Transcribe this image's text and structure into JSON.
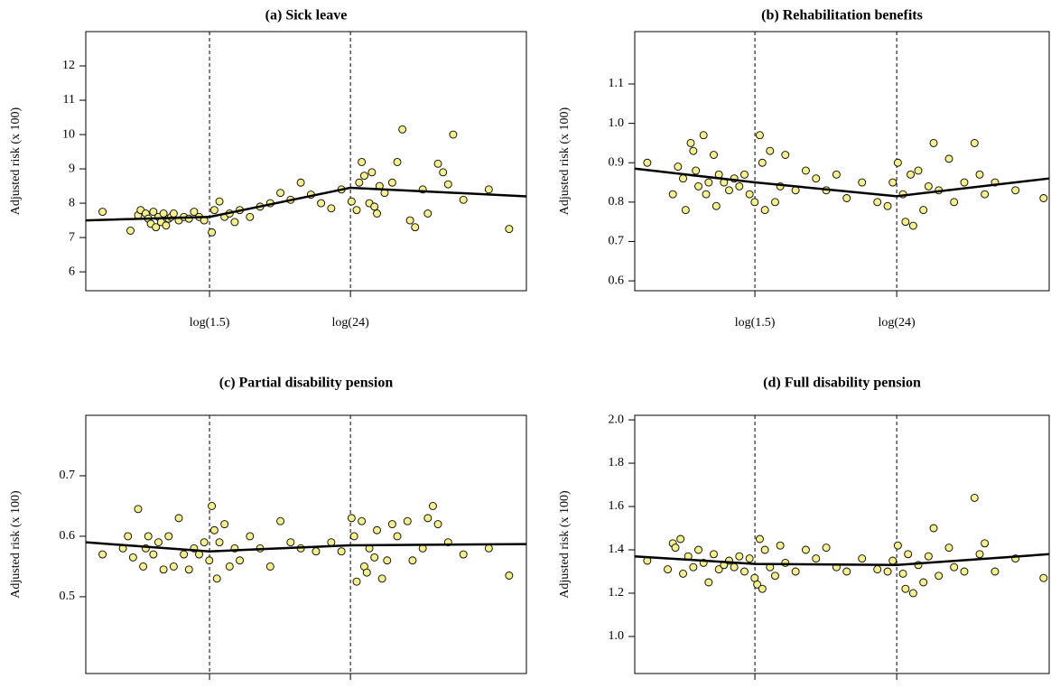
{
  "chart_data": [
    {
      "type": "scatter",
      "title": "(a) Sick leave",
      "ylabel": "Adjusted risk (x 100)",
      "xlim": [
        -2.03,
        6.64
      ],
      "ylim": [
        5.45,
        13
      ],
      "xticks": [
        {
          "value": 0.405,
          "label": "log(1.5)"
        },
        {
          "value": 3.178,
          "label": "log(24)"
        }
      ],
      "yticks": [
        6,
        7,
        8,
        9,
        10,
        11,
        12
      ],
      "dashed_at_xticks": true,
      "point_color": "#f5f08a",
      "line_color": "#000000",
      "x": [
        -1.7,
        -1.15,
        -1.0,
        -0.95,
        -0.85,
        -0.8,
        -0.75,
        -0.7,
        -0.65,
        -0.6,
        -0.55,
        -0.5,
        -0.45,
        -0.4,
        -0.35,
        -0.3,
        -0.2,
        -0.1,
        0,
        0.1,
        0.2,
        0.3,
        0.45,
        0.5,
        0.6,
        0.7,
        0.8,
        0.9,
        1.0,
        1.2,
        1.4,
        1.6,
        1.8,
        2.0,
        2.2,
        2.4,
        2.6,
        2.8,
        3.0,
        3.2,
        3.3,
        3.35,
        3.4,
        3.45,
        3.55,
        3.6,
        3.65,
        3.7,
        3.75,
        3.85,
        4.0,
        4.1,
        4.2,
        4.35,
        4.45,
        4.6,
        4.7,
        4.9,
        5.0,
        5.1,
        5.2,
        5.4,
        5.9,
        6.3
      ],
      "values": [
        7.75,
        7.2,
        7.65,
        7.8,
        7.7,
        7.55,
        7.4,
        7.75,
        7.3,
        7.6,
        7.45,
        7.7,
        7.35,
        7.55,
        7.6,
        7.7,
        7.5,
        7.6,
        7.55,
        7.75,
        7.6,
        7.5,
        7.15,
        7.8,
        8.05,
        7.6,
        7.7,
        7.45,
        7.8,
        7.6,
        7.9,
        8.0,
        8.3,
        8.1,
        8.6,
        8.25,
        8.0,
        7.85,
        8.4,
        8.05,
        7.8,
        8.6,
        9.2,
        8.8,
        8.0,
        8.9,
        7.9,
        7.7,
        8.5,
        8.3,
        8.6,
        9.2,
        10.15,
        7.5,
        7.3,
        8.4,
        7.7,
        9.15,
        8.9,
        8.55,
        10.0,
        8.1,
        8.4,
        7.25
      ],
      "fit": {
        "x": [
          -2.03,
          0.405,
          3.178,
          6.64
        ],
        "values": [
          7.5,
          7.6,
          8.45,
          8.2
        ]
      }
    },
    {
      "type": "scatter",
      "title": "(b) Rehabilitation benefits",
      "ylabel": "Adjusted risk (x 100)",
      "xlim": [
        -1.945,
        6.16
      ],
      "ylim": [
        0.575,
        1.233
      ],
      "xticks": [
        {
          "value": 0.405,
          "label": "log(1.5)"
        },
        {
          "value": 3.178,
          "label": "log(24)"
        }
      ],
      "yticks": [
        {
          "value": 0.6,
          "label": "0.6"
        },
        {
          "value": 0.7,
          "label": "0.7"
        },
        {
          "value": 0.8,
          "label": "0.8"
        },
        {
          "value": 0.9,
          "label": "0.9"
        },
        {
          "value": 1.0,
          "label": "1.0"
        },
        {
          "value": 1.1,
          "label": "1.1"
        }
      ],
      "dashed_at_xticks": true,
      "point_color": "#f5f08a",
      "line_color": "#000000",
      "x": [
        -1.7,
        -1.2,
        -1.1,
        -1.0,
        -0.95,
        -0.85,
        -0.8,
        -0.75,
        -0.7,
        -0.6,
        -0.55,
        -0.5,
        -0.4,
        -0.35,
        -0.3,
        -0.2,
        -0.1,
        0,
        0.1,
        0.2,
        0.3,
        0.4,
        0.5,
        0.55,
        0.6,
        0.7,
        0.8,
        0.9,
        1.0,
        1.2,
        1.4,
        1.6,
        1.8,
        2.0,
        2.2,
        2.5,
        2.8,
        3.0,
        3.1,
        3.2,
        3.3,
        3.35,
        3.45,
        3.5,
        3.6,
        3.7,
        3.8,
        3.9,
        4.0,
        4.2,
        4.3,
        4.5,
        4.7,
        4.8,
        4.9,
        5.1,
        5.5,
        6.05
      ],
      "values": [
        0.9,
        0.82,
        0.89,
        0.86,
        0.78,
        0.95,
        0.93,
        0.88,
        0.84,
        0.97,
        0.82,
        0.85,
        0.92,
        0.79,
        0.87,
        0.85,
        0.83,
        0.86,
        0.84,
        0.87,
        0.82,
        0.8,
        0.97,
        0.9,
        0.78,
        0.93,
        0.8,
        0.84,
        0.92,
        0.83,
        0.88,
        0.86,
        0.83,
        0.87,
        0.81,
        0.85,
        0.8,
        0.79,
        0.85,
        0.9,
        0.82,
        0.75,
        0.87,
        0.74,
        0.88,
        0.78,
        0.84,
        0.95,
        0.83,
        0.91,
        0.8,
        0.85,
        0.95,
        0.87,
        0.82,
        0.85,
        0.83,
        0.81
      ],
      "fit": {
        "x": [
          -1.945,
          0.405,
          3.178,
          6.16
        ],
        "values": [
          0.885,
          0.85,
          0.815,
          0.86
        ]
      }
    },
    {
      "type": "scatter",
      "title": "(c) Partial disability pension",
      "ylabel": "Adjusted risk (x 100)",
      "xlim": [
        -2.03,
        6.64
      ],
      "ylim": [
        0.373,
        0.8
      ],
      "xticks": [
        {
          "value": 0.405,
          "label": "log(1.5)"
        },
        {
          "value": 3.178,
          "label": "log(24)"
        }
      ],
      "yticks": [
        0.5,
        0.6,
        0.7
      ],
      "dashed_at_xticks": true,
      "point_color": "#f5f08a",
      "line_color": "#000000",
      "x": [
        -1.7,
        -1.3,
        -1.2,
        -1.1,
        -1.0,
        -0.9,
        -0.85,
        -0.8,
        -0.7,
        -0.6,
        -0.5,
        -0.4,
        -0.3,
        -0.2,
        -0.1,
        0,
        0.1,
        0.2,
        0.3,
        0.4,
        0.45,
        0.5,
        0.55,
        0.6,
        0.7,
        0.8,
        0.9,
        1.0,
        1.2,
        1.4,
        1.6,
        1.8,
        2.0,
        2.2,
        2.5,
        2.8,
        3.0,
        3.2,
        3.25,
        3.3,
        3.4,
        3.45,
        3.5,
        3.55,
        3.65,
        3.7,
        3.8,
        3.9,
        4.0,
        4.1,
        4.3,
        4.4,
        4.6,
        4.7,
        4.8,
        4.9,
        5.1,
        5.4,
        5.9,
        6.3
      ],
      "values": [
        0.57,
        0.58,
        0.6,
        0.565,
        0.645,
        0.55,
        0.58,
        0.6,
        0.57,
        0.59,
        0.545,
        0.6,
        0.55,
        0.63,
        0.57,
        0.545,
        0.58,
        0.57,
        0.59,
        0.56,
        0.65,
        0.61,
        0.53,
        0.59,
        0.62,
        0.55,
        0.58,
        0.56,
        0.6,
        0.58,
        0.55,
        0.625,
        0.59,
        0.58,
        0.575,
        0.59,
        0.575,
        0.63,
        0.6,
        0.525,
        0.625,
        0.55,
        0.54,
        0.58,
        0.565,
        0.61,
        0.53,
        0.56,
        0.62,
        0.6,
        0.625,
        0.56,
        0.58,
        0.63,
        0.65,
        0.62,
        0.59,
        0.57,
        0.58,
        0.535
      ],
      "fit": {
        "x": [
          -2.03,
          0.405,
          3.178,
          6.64
        ],
        "values": [
          0.59,
          0.575,
          0.585,
          0.587
        ]
      }
    },
    {
      "type": "scatter",
      "title": "(d) Full disability pension",
      "ylabel": "Adjusted risk (x 100)",
      "xlim": [
        -1.945,
        6.16
      ],
      "ylim": [
        0.829,
        2.021
      ],
      "xticks": [
        {
          "value": 0.405,
          "label": "log(1.5)"
        },
        {
          "value": 3.178,
          "label": "log(24)"
        }
      ],
      "yticks": [
        {
          "value": 1.0,
          "label": "1.0"
        },
        {
          "value": 1.2,
          "label": "1.2"
        },
        {
          "value": 1.4,
          "label": "1.4"
        },
        {
          "value": 1.6,
          "label": "1.6"
        },
        {
          "value": 1.8,
          "label": "1.8"
        },
        {
          "value": 2.0,
          "label": "2.0"
        }
      ],
      "dashed_at_xticks": true,
      "point_color": "#f5f08a",
      "line_color": "#000000",
      "x": [
        -1.7,
        -1.3,
        -1.2,
        -1.15,
        -1.05,
        -1.0,
        -0.9,
        -0.8,
        -0.7,
        -0.6,
        -0.5,
        -0.4,
        -0.3,
        -0.2,
        -0.1,
        0,
        0.1,
        0.2,
        0.3,
        0.4,
        0.45,
        0.5,
        0.55,
        0.6,
        0.7,
        0.8,
        0.9,
        1.0,
        1.2,
        1.4,
        1.6,
        1.8,
        2.0,
        2.2,
        2.5,
        2.8,
        3.0,
        3.1,
        3.2,
        3.3,
        3.35,
        3.4,
        3.5,
        3.6,
        3.7,
        3.8,
        3.9,
        4.0,
        4.2,
        4.3,
        4.5,
        4.7,
        4.8,
        4.9,
        5.1,
        5.5,
        6.05
      ],
      "values": [
        1.35,
        1.31,
        1.43,
        1.41,
        1.45,
        1.29,
        1.37,
        1.32,
        1.4,
        1.34,
        1.25,
        1.38,
        1.31,
        1.33,
        1.35,
        1.32,
        1.37,
        1.3,
        1.36,
        1.27,
        1.24,
        1.45,
        1.22,
        1.4,
        1.32,
        1.28,
        1.42,
        1.34,
        1.3,
        1.4,
        1.36,
        1.41,
        1.32,
        1.3,
        1.36,
        1.31,
        1.3,
        1.35,
        1.42,
        1.29,
        1.22,
        1.38,
        1.2,
        1.33,
        1.25,
        1.37,
        1.5,
        1.28,
        1.41,
        1.32,
        1.3,
        1.64,
        1.38,
        1.43,
        1.3,
        1.36,
        1.27
      ],
      "fit": {
        "x": [
          -1.945,
          0.405,
          3.178,
          6.16
        ],
        "values": [
          1.37,
          1.335,
          1.33,
          1.38
        ]
      }
    }
  ]
}
